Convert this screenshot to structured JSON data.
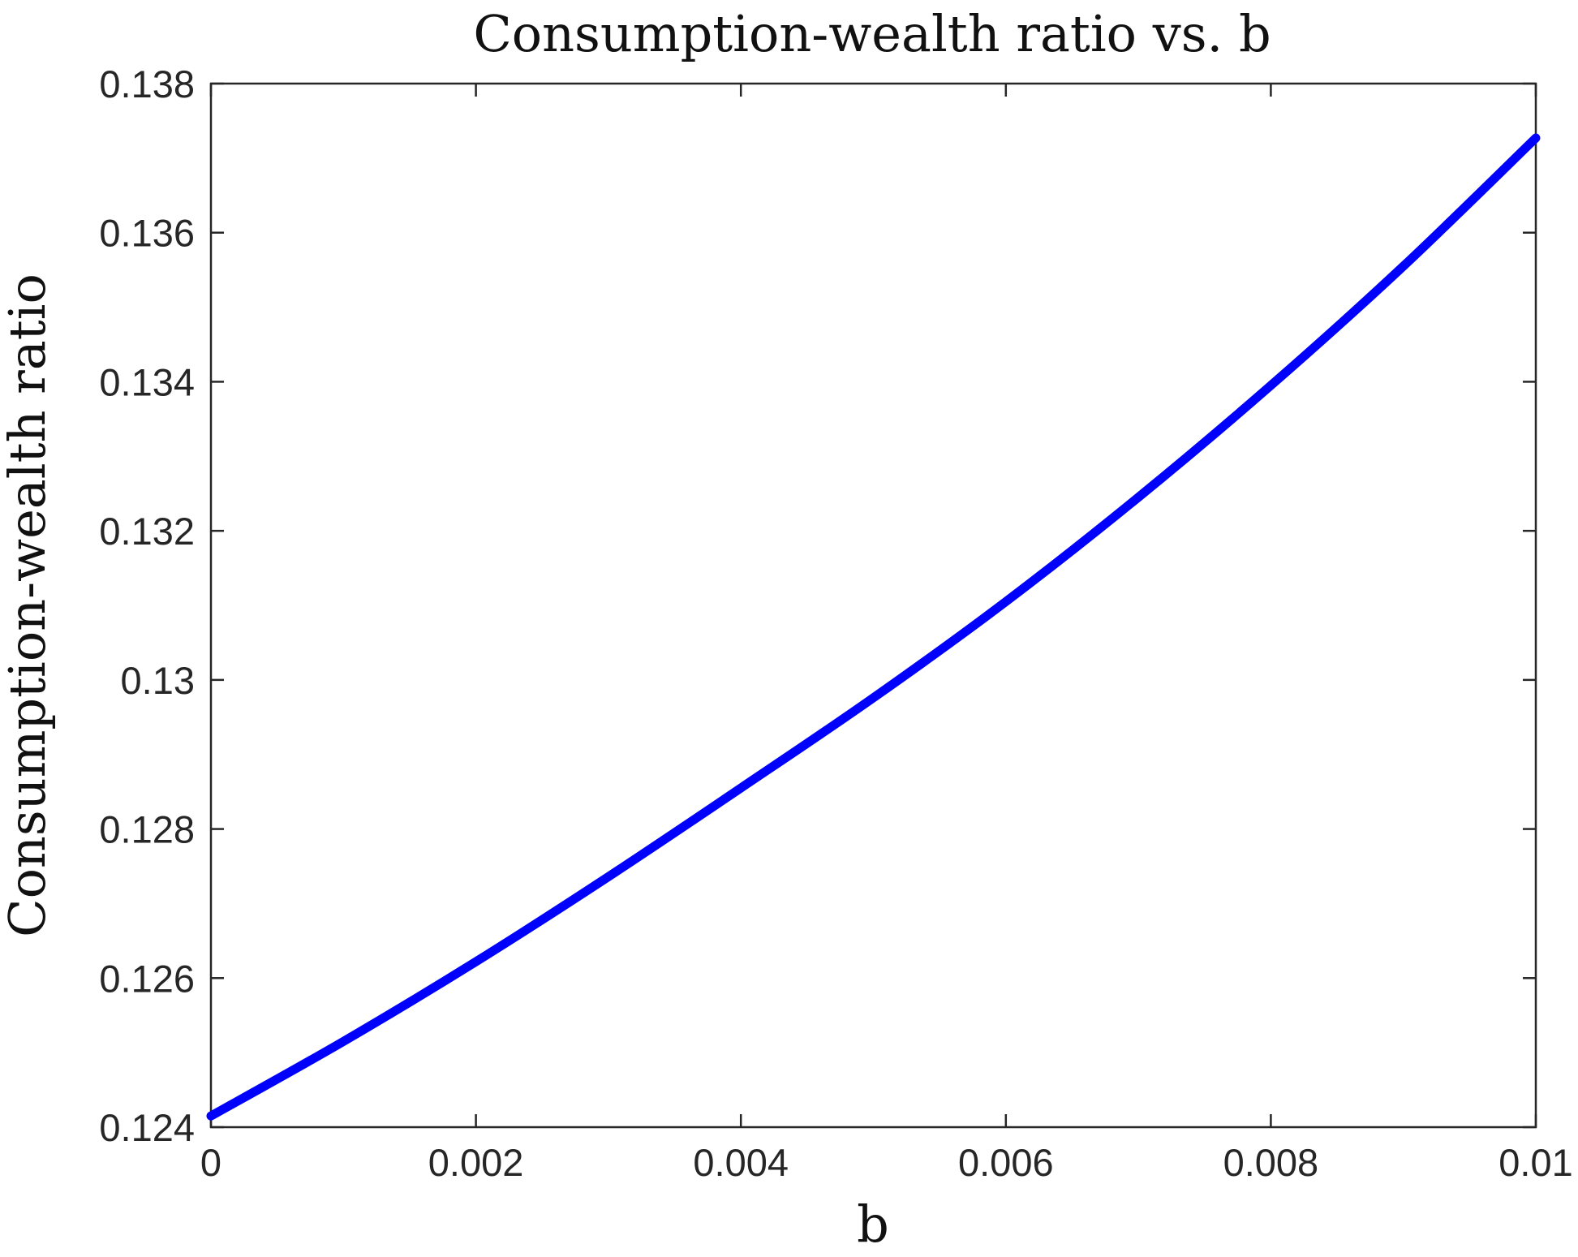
{
  "chart_data": {
    "type": "line",
    "title": "Consumption-wealth ratio vs. b",
    "xlabel": "b",
    "ylabel": "Consumption-wealth ratio",
    "xlim": [
      0,
      0.01
    ],
    "ylim": [
      0.124,
      0.138
    ],
    "xticks": [
      0,
      0.002,
      0.004,
      0.006,
      0.008,
      0.01
    ],
    "xtick_labels": [
      "0",
      "0.002",
      "0.004",
      "0.006",
      "0.008",
      "0.01"
    ],
    "yticks": [
      0.124,
      0.126,
      0.128,
      0.13,
      0.132,
      0.134,
      0.136,
      0.138
    ],
    "ytick_labels": [
      "0.124",
      "0.126",
      "0.128",
      "0.13",
      "0.132",
      "0.134",
      "0.136",
      "0.138"
    ],
    "grid": false,
    "box": true,
    "series": [
      {
        "color": "#0000ff",
        "x": [
          0,
          0.001,
          0.002,
          0.003,
          0.004,
          0.005,
          0.006,
          0.007,
          0.008,
          0.009,
          0.01
        ],
        "y": [
          0.12415,
          0.12515,
          0.12622,
          0.12736,
          0.12855,
          0.12976,
          0.13105,
          0.13245,
          0.13395,
          0.13555,
          0.13727
        ]
      }
    ]
  }
}
